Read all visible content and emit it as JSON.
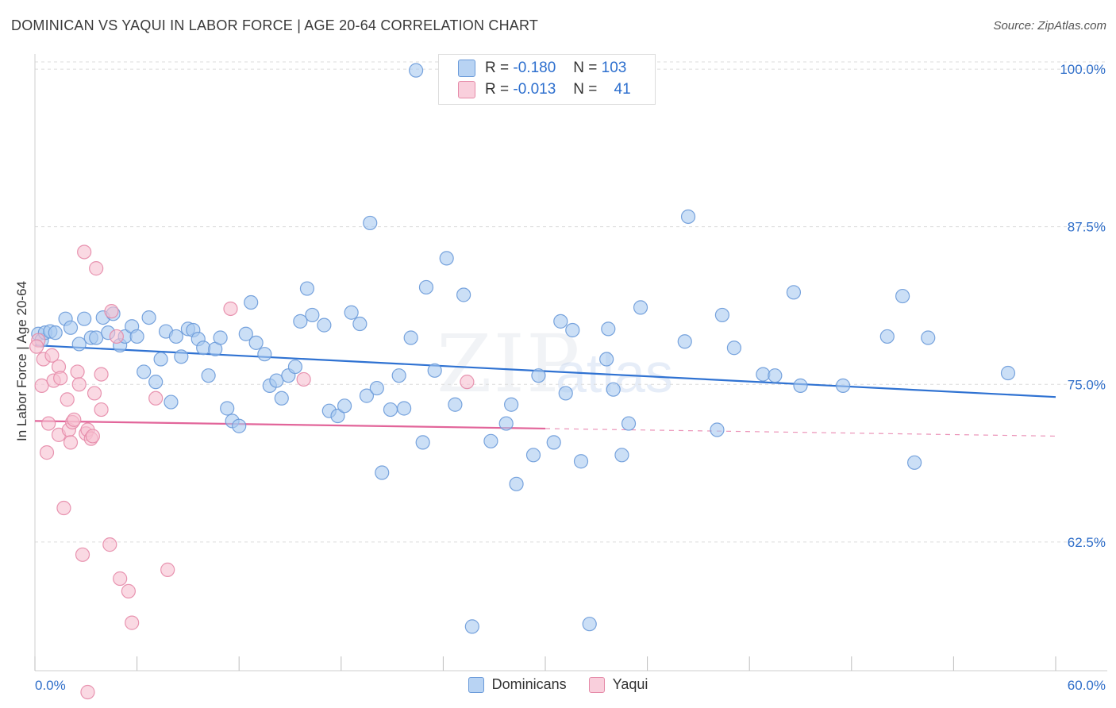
{
  "title": "DOMINICAN VS YAQUI IN LABOR FORCE | AGE 20-64 CORRELATION CHART",
  "source": "Source: ZipAtlas.com",
  "watermark": {
    "zip": "ZIP",
    "atlas": "atlas"
  },
  "legend_top": {
    "rows": [
      {
        "r_label": "R =",
        "r_value": "-0.180",
        "n_label": "N =",
        "n_value": "103"
      },
      {
        "r_label": "R =",
        "r_value": "-0.013",
        "n_label": "N =",
        "n_value": "41"
      }
    ]
  },
  "legend_bottom": [
    "Dominicans",
    "Yaqui"
  ],
  "colors": {
    "blue_fill": "#a9c9f0",
    "blue_stroke": "#6a9ad9",
    "blue_line": "#2f72d2",
    "pink_fill": "#f6bfd0",
    "pink_stroke": "#e58aa8",
    "pink_line": "#e2659a",
    "tick_label": "#2f6ec9",
    "grid": "#dcdcdc"
  },
  "chart_data": {
    "type": "scatter",
    "title": "DOMINICAN VS YAQUI IN LABOR FORCE | AGE 20-64 CORRELATION CHART",
    "xlabel": "",
    "ylabel": "In Labor Force | Age 20-64",
    "xlim": [
      0,
      60
    ],
    "ylim": [
      52.3,
      101.2
    ],
    "x_tick_labels": [
      "0.0%",
      "60.0%"
    ],
    "y_ticks": [
      62.5,
      75.0,
      87.5,
      100.0
    ],
    "y_tick_labels": [
      "62.5%",
      "75.0%",
      "87.5%",
      "100.0%"
    ],
    "series": [
      {
        "name": "Dominicans",
        "r": -0.18,
        "n": 103,
        "trend": {
          "x0": 0,
          "y0": 78.1,
          "x1": 60,
          "y1": 74.0
        },
        "points": [
          [
            0.2,
            79.0
          ],
          [
            0.4,
            78.5
          ],
          [
            0.6,
            79.1
          ],
          [
            0.9,
            79.2
          ],
          [
            1.2,
            79.1
          ],
          [
            1.8,
            80.2
          ],
          [
            2.1,
            79.5
          ],
          [
            2.6,
            78.2
          ],
          [
            2.9,
            80.2
          ],
          [
            3.3,
            78.7
          ],
          [
            3.6,
            78.7
          ],
          [
            4.0,
            80.3
          ],
          [
            4.3,
            79.1
          ],
          [
            4.6,
            80.6
          ],
          [
            5.0,
            78.1
          ],
          [
            5.3,
            78.8
          ],
          [
            5.7,
            79.6
          ],
          [
            6.0,
            78.8
          ],
          [
            6.4,
            76.0
          ],
          [
            6.7,
            80.3
          ],
          [
            7.1,
            75.2
          ],
          [
            7.4,
            77.0
          ],
          [
            7.7,
            79.2
          ],
          [
            8.0,
            73.6
          ],
          [
            8.3,
            78.8
          ],
          [
            8.6,
            77.2
          ],
          [
            9.0,
            79.4
          ],
          [
            9.3,
            79.3
          ],
          [
            9.6,
            78.6
          ],
          [
            9.9,
            77.9
          ],
          [
            10.2,
            75.7
          ],
          [
            10.6,
            77.8
          ],
          [
            10.9,
            78.7
          ],
          [
            11.3,
            73.1
          ],
          [
            11.6,
            72.1
          ],
          [
            12.0,
            71.7
          ],
          [
            12.4,
            79.0
          ],
          [
            12.7,
            81.5
          ],
          [
            13.0,
            78.3
          ],
          [
            13.5,
            77.4
          ],
          [
            13.8,
            74.9
          ],
          [
            14.2,
            75.3
          ],
          [
            14.5,
            73.9
          ],
          [
            14.9,
            75.7
          ],
          [
            15.3,
            76.4
          ],
          [
            15.6,
            80.0
          ],
          [
            16.0,
            82.6
          ],
          [
            16.3,
            80.5
          ],
          [
            17.0,
            79.7
          ],
          [
            17.3,
            72.9
          ],
          [
            17.8,
            72.5
          ],
          [
            18.2,
            73.3
          ],
          [
            18.6,
            80.7
          ],
          [
            19.1,
            79.8
          ],
          [
            19.5,
            74.1
          ],
          [
            19.7,
            87.8
          ],
          [
            20.1,
            74.7
          ],
          [
            20.4,
            68.0
          ],
          [
            20.9,
            73.0
          ],
          [
            21.4,
            75.7
          ],
          [
            21.7,
            73.1
          ],
          [
            22.1,
            78.7
          ],
          [
            22.4,
            99.9
          ],
          [
            22.8,
            70.4
          ],
          [
            23.0,
            82.7
          ],
          [
            23.5,
            76.1
          ],
          [
            24.2,
            85.0
          ],
          [
            24.7,
            73.4
          ],
          [
            25.2,
            82.1
          ],
          [
            25.7,
            55.8
          ],
          [
            26.8,
            70.5
          ],
          [
            27.7,
            71.9
          ],
          [
            28.0,
            73.4
          ],
          [
            28.3,
            67.1
          ],
          [
            29.3,
            69.4
          ],
          [
            29.6,
            75.7
          ],
          [
            30.5,
            70.4
          ],
          [
            30.9,
            80.0
          ],
          [
            31.2,
            74.3
          ],
          [
            31.6,
            79.3
          ],
          [
            32.1,
            68.9
          ],
          [
            32.6,
            56.0
          ],
          [
            33.7,
            79.4
          ],
          [
            33.6,
            77.0
          ],
          [
            34.0,
            74.6
          ],
          [
            34.5,
            69.4
          ],
          [
            34.9,
            71.9
          ],
          [
            35.6,
            81.1
          ],
          [
            38.2,
            78.4
          ],
          [
            38.4,
            88.3
          ],
          [
            40.4,
            80.5
          ],
          [
            40.1,
            71.4
          ],
          [
            41.1,
            77.9
          ],
          [
            42.8,
            75.8
          ],
          [
            43.5,
            75.7
          ],
          [
            44.6,
            82.3
          ],
          [
            45.0,
            74.9
          ],
          [
            47.5,
            74.9
          ],
          [
            50.1,
            78.8
          ],
          [
            51.0,
            82.0
          ],
          [
            51.7,
            68.8
          ],
          [
            52.5,
            78.7
          ],
          [
            57.2,
            75.9
          ]
        ]
      },
      {
        "name": "Yaqui",
        "r": -0.013,
        "n": 41,
        "trend": {
          "x0": 0,
          "y0": 72.1,
          "x1": 30,
          "y1": 71.5,
          "dash_to_x": 60,
          "dash_to_y": 70.9
        },
        "points": [
          [
            0.2,
            78.5
          ],
          [
            0.5,
            77.0
          ],
          [
            0.4,
            74.9
          ],
          [
            0.7,
            69.6
          ],
          [
            0.8,
            71.9
          ],
          [
            1.0,
            77.3
          ],
          [
            1.1,
            75.3
          ],
          [
            1.4,
            71.0
          ],
          [
            1.4,
            76.4
          ],
          [
            1.5,
            75.5
          ],
          [
            1.7,
            65.2
          ],
          [
            1.9,
            73.8
          ],
          [
            2.0,
            71.4
          ],
          [
            2.1,
            70.4
          ],
          [
            2.2,
            72.0
          ],
          [
            2.3,
            72.2
          ],
          [
            2.5,
            76.0
          ],
          [
            2.6,
            75.0
          ],
          [
            2.8,
            61.5
          ],
          [
            2.9,
            85.5
          ],
          [
            3.0,
            71.1
          ],
          [
            3.1,
            71.4
          ],
          [
            3.3,
            70.7
          ],
          [
            3.4,
            70.9
          ],
          [
            3.5,
            74.3
          ],
          [
            3.6,
            84.2
          ],
          [
            3.9,
            75.8
          ],
          [
            3.9,
            73.0
          ],
          [
            4.4,
            62.3
          ],
          [
            4.5,
            80.8
          ],
          [
            4.8,
            78.8
          ],
          [
            5.0,
            59.6
          ],
          [
            5.5,
            58.6
          ],
          [
            5.7,
            56.1
          ],
          [
            3.1,
            50.6
          ],
          [
            7.1,
            73.9
          ],
          [
            7.8,
            60.3
          ],
          [
            11.5,
            81.0
          ],
          [
            15.8,
            75.4
          ],
          [
            25.4,
            75.2
          ],
          [
            0.1,
            78.0
          ]
        ]
      }
    ]
  }
}
